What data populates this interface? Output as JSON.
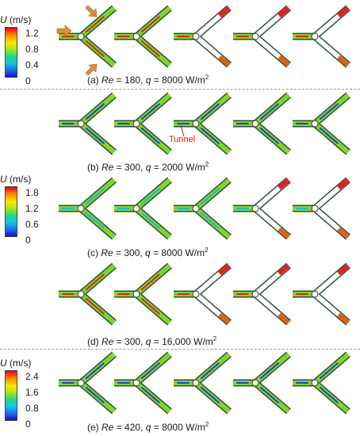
{
  "legends": [
    {
      "symbol": "U",
      "unit": " (m/s)",
      "ticks": [
        "1.2",
        "0.8",
        "0.4",
        "0"
      ]
    },
    {
      "symbol": "U",
      "unit": " (m/s)",
      "ticks": [
        "1.8",
        "1.2",
        "0.6",
        "0"
      ]
    },
    {
      "symbol": "U",
      "unit": " (m/s)",
      "ticks": [
        "2.4",
        "1.6",
        "0.8",
        "0"
      ]
    }
  ],
  "rows": [
    {
      "label": "(a) ",
      "re_sym": "Re",
      "re": " = 180, ",
      "q_sym": "q",
      "q": " = 8000 W/m",
      "sup": "2",
      "style": "low"
    },
    {
      "label": "(b) ",
      "re_sym": "Re",
      "re": " = 300, ",
      "q_sym": "q",
      "q": " = 2000 W/m",
      "sup": "2",
      "style": "blue"
    },
    {
      "label": "(c) ",
      "re_sym": "Re",
      "re": " = 300, ",
      "q_sym": "q",
      "q": " = 8000 W/m",
      "sup": "2",
      "style": "mixed"
    },
    {
      "label": "(d) ",
      "re_sym": "Re",
      "re": " = 300, ",
      "q_sym": "q",
      "q": " = 16,000 W/m",
      "sup": "2",
      "style": "low"
    },
    {
      "label": "(e) ",
      "re_sym": "Re",
      "re": " = 420, ",
      "q_sym": "q",
      "q": " = 8000 W/m",
      "sup": "2",
      "style": "blue"
    }
  ],
  "annotation": "Tunnel",
  "colors": {
    "green": "#7fd62a",
    "blue": "#2040e0",
    "red": "#e8201a",
    "orange": "#e08030",
    "gray": "#ffffff"
  }
}
